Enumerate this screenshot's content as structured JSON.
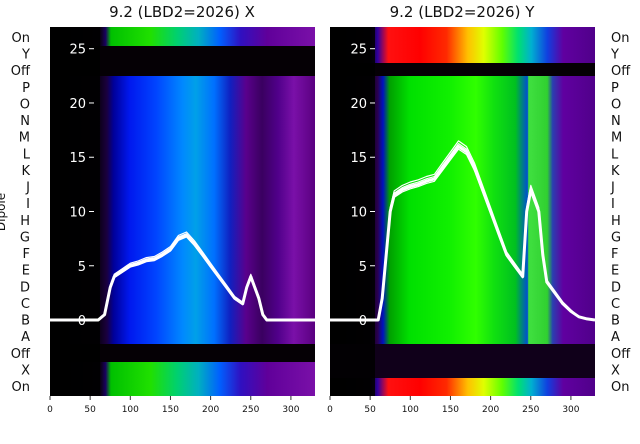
{
  "chart_data": [
    {
      "type": "heatmap",
      "title": "9.2 (LBD2=2026) X",
      "ylabel": "Dipole",
      "row_labels": [
        "On",
        "Y",
        "Off",
        "P",
        "O",
        "N",
        "M",
        "L",
        "K",
        "J",
        "I",
        "H",
        "G",
        "F",
        "E",
        "D",
        "C",
        "B",
        "A",
        "Off",
        "X",
        "On"
      ],
      "xlim": [
        0,
        330
      ],
      "x_ticks": [
        0,
        50,
        100,
        150,
        200,
        250,
        300
      ],
      "overlay_ylim": [
        -7,
        27
      ],
      "overlay_y_ticks": [
        0,
        5,
        10,
        15,
        20,
        25
      ],
      "grid": false,
      "overlay_line": {
        "x": [
          0,
          20,
          40,
          60,
          68,
          75,
          80,
          90,
          100,
          110,
          120,
          130,
          140,
          150,
          160,
          170,
          180,
          190,
          200,
          210,
          220,
          230,
          240,
          245,
          250,
          255,
          260,
          265,
          270,
          280,
          290,
          300,
          310,
          320,
          330
        ],
        "y": [
          0,
          0,
          0,
          0,
          0.5,
          3,
          4,
          4.5,
          5,
          5.2,
          5.5,
          5.6,
          6,
          6.5,
          7.5,
          7.8,
          7,
          6,
          5,
          4,
          3,
          2,
          1.5,
          3,
          4,
          3,
          2,
          0.5,
          0,
          0,
          0,
          0,
          0,
          0,
          0
        ]
      }
    },
    {
      "type": "heatmap",
      "title": "9.2 (LBD2=2026) Y",
      "ylabel": "",
      "row_labels": [
        "On",
        "Y",
        "Off",
        "P",
        "O",
        "N",
        "M",
        "L",
        "K",
        "J",
        "I",
        "H",
        "G",
        "F",
        "E",
        "D",
        "C",
        "B",
        "A",
        "Off",
        "X",
        "On"
      ],
      "xlim": [
        0,
        330
      ],
      "x_ticks": [
        0,
        50,
        100,
        150,
        200,
        250,
        300
      ],
      "overlay_ylim": [
        -7,
        27
      ],
      "overlay_y_ticks": [
        0,
        5,
        10,
        15,
        20,
        25
      ],
      "grid": false,
      "overlay_line": {
        "x": [
          0,
          20,
          40,
          60,
          65,
          70,
          75,
          80,
          90,
          100,
          110,
          120,
          130,
          140,
          150,
          160,
          170,
          180,
          190,
          200,
          210,
          220,
          230,
          240,
          245,
          250,
          255,
          260,
          265,
          270,
          280,
          290,
          300,
          310,
          320,
          330
        ],
        "y": [
          0,
          0,
          0,
          0,
          2,
          6,
          10,
          11.5,
          12,
          12.3,
          12.5,
          12.8,
          13,
          14,
          15,
          16,
          15.5,
          14,
          12,
          10,
          8,
          6,
          5,
          4,
          10,
          12,
          11,
          10,
          6,
          3.5,
          2.5,
          1.5,
          0.8,
          0.3,
          0.1,
          0
        ]
      }
    }
  ]
}
